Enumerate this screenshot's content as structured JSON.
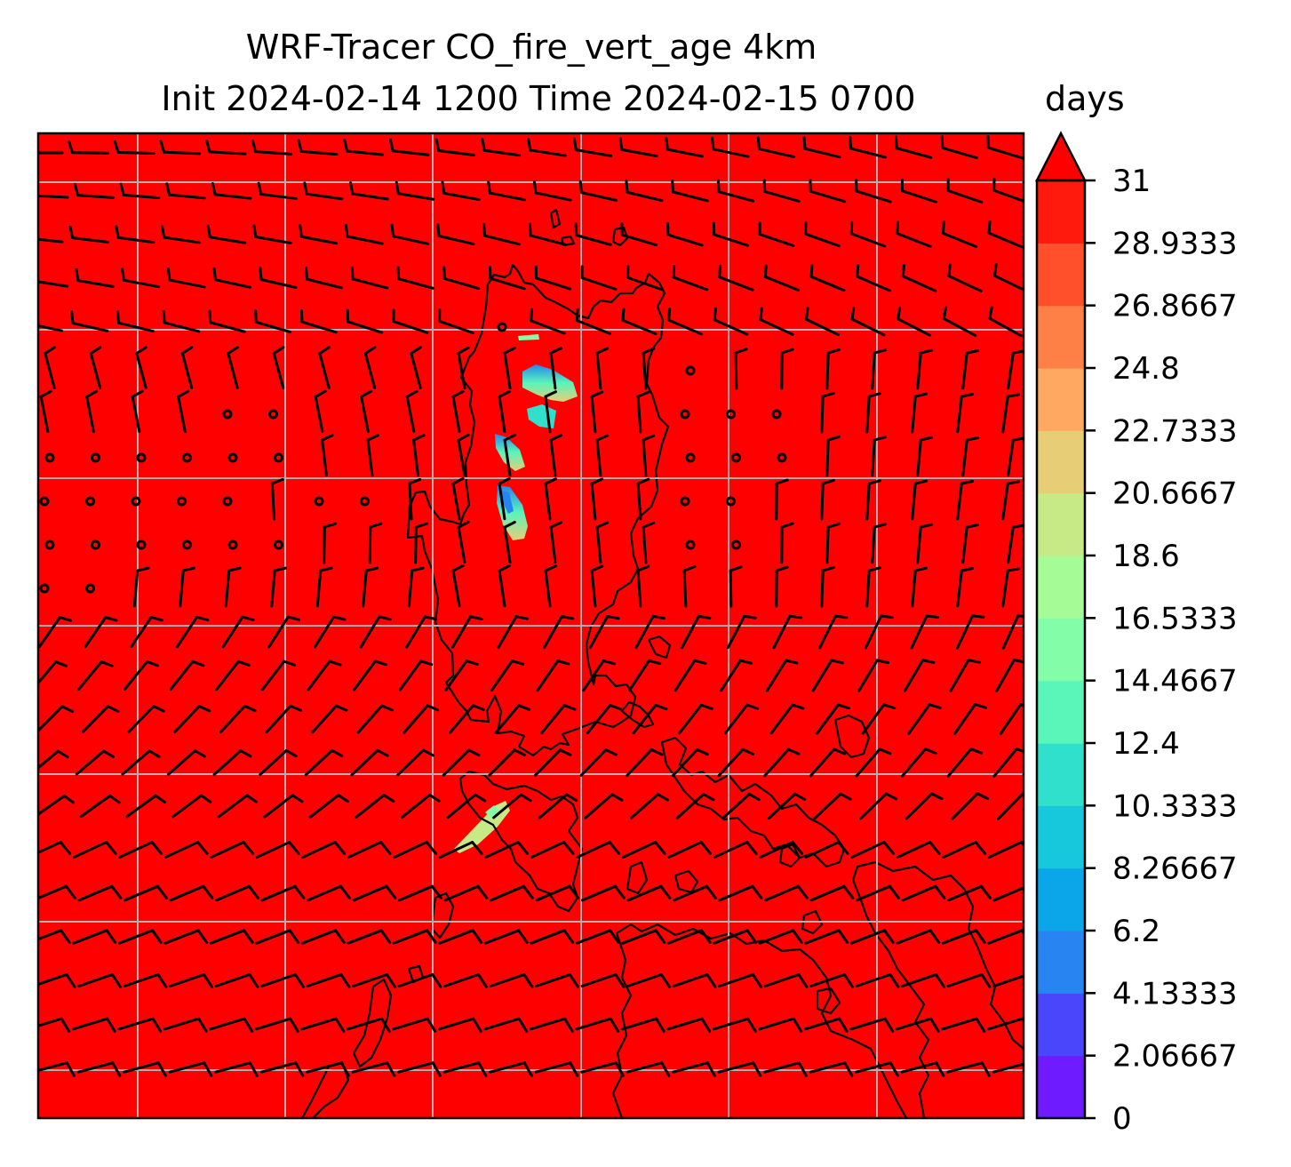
{
  "title": {
    "line1": "WRF-Tracer CO_fire_vert_age 4km",
    "line2": "Init 2024-02-14 1200 Time 2024-02-15 0700"
  },
  "colorbar": {
    "label": "days",
    "ticks": [
      "0",
      "2.06667",
      "4.13333",
      "6.2",
      "8.26667",
      "10.3333",
      "12.4",
      "14.4667",
      "16.5333",
      "18.6",
      "20.6667",
      "22.7333",
      "24.8",
      "26.8667",
      "28.9333",
      "31"
    ],
    "colors": [
      "#6f1bff",
      "#4a46fb",
      "#2884f0",
      "#0ba6e9",
      "#17c7db",
      "#30dfcc",
      "#5af5b9",
      "#84fda9",
      "#a5fb96",
      "#c8ea86",
      "#e8cd77",
      "#ffa862",
      "#ff8046",
      "#ff4f2b",
      "#ff1a0d",
      "#ff0000"
    ],
    "extend": "max"
  },
  "map": {
    "background_color": "#ff0000",
    "gridlines": true,
    "grid_color": "#b0b0b0",
    "coastline_color": "#000000",
    "barb_color": "#000000"
  }
}
